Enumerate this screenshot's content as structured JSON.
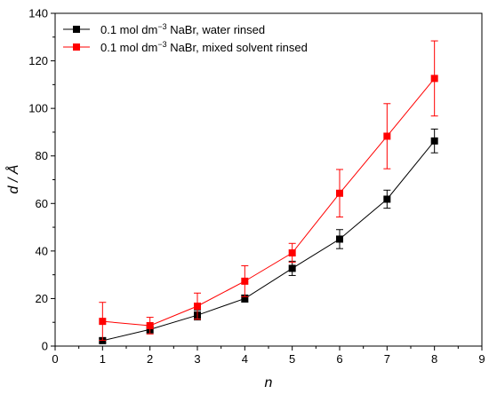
{
  "chart_data": {
    "type": "line",
    "xlabel": "n",
    "ylabel": "d / Å",
    "xlim": [
      0,
      9
    ],
    "ylim": [
      0,
      140
    ],
    "xticks": [
      0,
      1,
      2,
      3,
      4,
      5,
      6,
      7,
      8,
      9
    ],
    "yticks": [
      0,
      20,
      40,
      60,
      80,
      100,
      120,
      140
    ],
    "grid": false,
    "legend_position": "top-left",
    "legend": [
      {
        "prefix": "0.1 mol dm",
        "sup": "−3",
        "suffix": " NaBr, water rinsed"
      },
      {
        "prefix": "0.1 mol dm",
        "sup": "−3",
        "suffix": " NaBr, mixed solvent rinsed"
      }
    ],
    "series": [
      {
        "color": "#000000",
        "x": [
          1,
          2,
          3,
          4,
          5,
          6,
          7,
          8
        ],
        "y": [
          2.3,
          7,
          13,
          20,
          32.7,
          45,
          61.8,
          86.3
        ],
        "err": [
          1.0,
          1.5,
          2.0,
          1.5,
          3.0,
          4.0,
          3.8,
          5.0
        ]
      },
      {
        "color": "#ff0000",
        "x": [
          1,
          2,
          3,
          4,
          5,
          6,
          7,
          8
        ],
        "y": [
          10.4,
          8.6,
          16.8,
          27.3,
          39.2,
          64.3,
          88.3,
          112.6
        ],
        "err": [
          8.0,
          3.5,
          5.5,
          6.5,
          4.0,
          10.0,
          13.7,
          15.8
        ]
      }
    ]
  }
}
